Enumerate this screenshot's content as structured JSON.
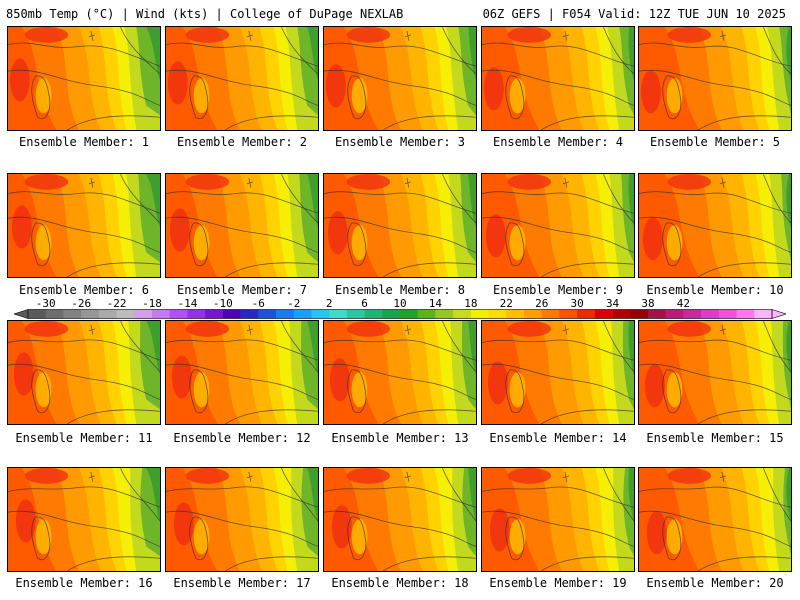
{
  "header": {
    "left": "850mb Temp (°C) | Wind (kts) | College of DuPage NEXLAB",
    "right": "06Z GEFS | F054 Valid: 12Z TUE JUN 10 2025"
  },
  "members": [
    {
      "label": "Ensemble Member: 1"
    },
    {
      "label": "Ensemble Member: 2"
    },
    {
      "label": "Ensemble Member: 3"
    },
    {
      "label": "Ensemble Member: 4"
    },
    {
      "label": "Ensemble Member: 5"
    },
    {
      "label": "Ensemble Member: 6"
    },
    {
      "label": "Ensemble Member: 7"
    },
    {
      "label": "Ensemble Member: 8"
    },
    {
      "label": "Ensemble Member: 9"
    },
    {
      "label": "Ensemble Member: 10"
    },
    {
      "label": "Ensemble Member: 11"
    },
    {
      "label": "Ensemble Member: 12"
    },
    {
      "label": "Ensemble Member: 13"
    },
    {
      "label": "Ensemble Member: 14"
    },
    {
      "label": "Ensemble Member: 15"
    },
    {
      "label": "Ensemble Member: 16"
    },
    {
      "label": "Ensemble Member: 17"
    },
    {
      "label": "Ensemble Member: 18"
    },
    {
      "label": "Ensemble Member: 19"
    },
    {
      "label": "Ensemble Member: 20"
    }
  ],
  "colorbar": {
    "labels": [
      "-30",
      "-26",
      "-22",
      "-18",
      "-14",
      "-10",
      "-6",
      "-2",
      "2",
      "6",
      "10",
      "14",
      "18",
      "22",
      "26",
      "30",
      "34",
      "38",
      "42"
    ],
    "colors": [
      "#5a5a5a",
      "#6e6e6e",
      "#828282",
      "#969696",
      "#aaaaaa",
      "#bcbcbc",
      "#d2a0e6",
      "#c878f0",
      "#b450f0",
      "#9632e6",
      "#7814d2",
      "#5000b4",
      "#2828c8",
      "#1e50dc",
      "#1e78f0",
      "#1ea0f0",
      "#1ec8f0",
      "#3cdcc8",
      "#28c8a0",
      "#1eb478",
      "#1ea050",
      "#28a028",
      "#5ab41e",
      "#96c81e",
      "#c8dc1e",
      "#f0f000",
      "#ffdc00",
      "#ffbe00",
      "#ffa000",
      "#ff7800",
      "#ff5000",
      "#f02800",
      "#dc0000",
      "#b40000",
      "#960000",
      "#a0144a",
      "#b41e78",
      "#c828a0",
      "#dc3cc8",
      "#f050dc",
      "#ff78f0",
      "#ffb4ff"
    ]
  },
  "map_palette": {
    "green_dark": "#3f9f2c",
    "green": "#6fb52a",
    "yellow_green": "#c3d91e",
    "yellow": "#f4ef05",
    "gold": "#ffd200",
    "orange_light": "#ffb400",
    "orange": "#ff9a00",
    "orange_dark": "#ff7a00",
    "red_orange": "#ff5a00",
    "red": "#f03010"
  }
}
